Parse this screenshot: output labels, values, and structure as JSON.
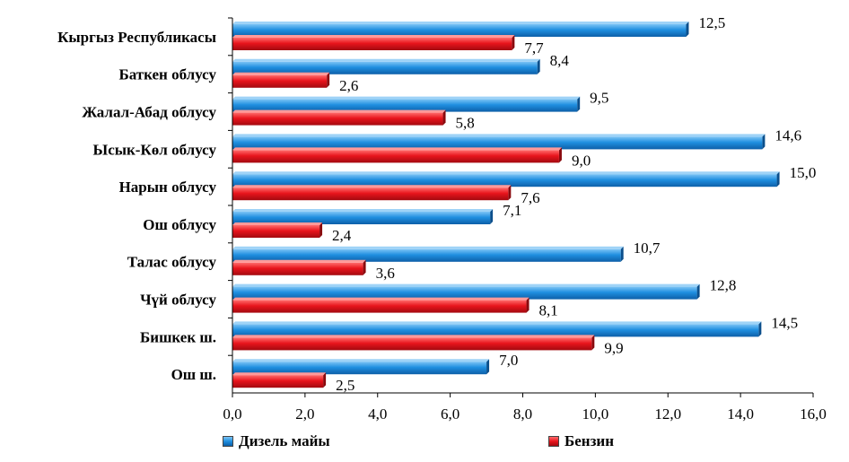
{
  "chart_data": {
    "type": "bar",
    "orientation": "horizontal",
    "title": "",
    "xlabel": "",
    "ylabel": "",
    "xlim": [
      0,
      16
    ],
    "ticks": [
      "0,0",
      "2,0",
      "4,0",
      "6,0",
      "8,0",
      "10,0",
      "12,0",
      "14,0",
      "16,0"
    ],
    "tick_values": [
      0,
      2,
      4,
      6,
      8,
      10,
      12,
      14,
      16
    ],
    "categories": [
      "Кыргыз Республикасы",
      "Баткен облусу",
      "Жалал-Абад облусу",
      "Ысык-Көл облусу",
      "Нарын облусу",
      "Ош облусу",
      "Талас облусу",
      "Чүй облусу",
      "Бишкек ш.",
      "Ош ш."
    ],
    "series": [
      {
        "name": "Дизель майы",
        "color": "#1f8fe0",
        "values": [
          12.5,
          8.4,
          9.5,
          14.6,
          15.0,
          7.1,
          10.7,
          12.8,
          14.5,
          7.0
        ],
        "labels": [
          "12,5",
          "8,4",
          "9,5",
          "14,6",
          "15,0",
          "7,1",
          "10,7",
          "12,8",
          "14,5",
          "7,0"
        ]
      },
      {
        "name": "Бензин",
        "color": "#e8141c",
        "values": [
          7.7,
          2.6,
          5.8,
          9.0,
          7.6,
          2.4,
          3.6,
          8.1,
          9.9,
          2.5
        ],
        "labels": [
          "7,7",
          "2,6",
          "5,8",
          "9,0",
          "7,6",
          "2,4",
          "3,6",
          "8,1",
          "9,9",
          "2,5"
        ]
      }
    ],
    "legend_position": "bottom",
    "grid": false
  }
}
